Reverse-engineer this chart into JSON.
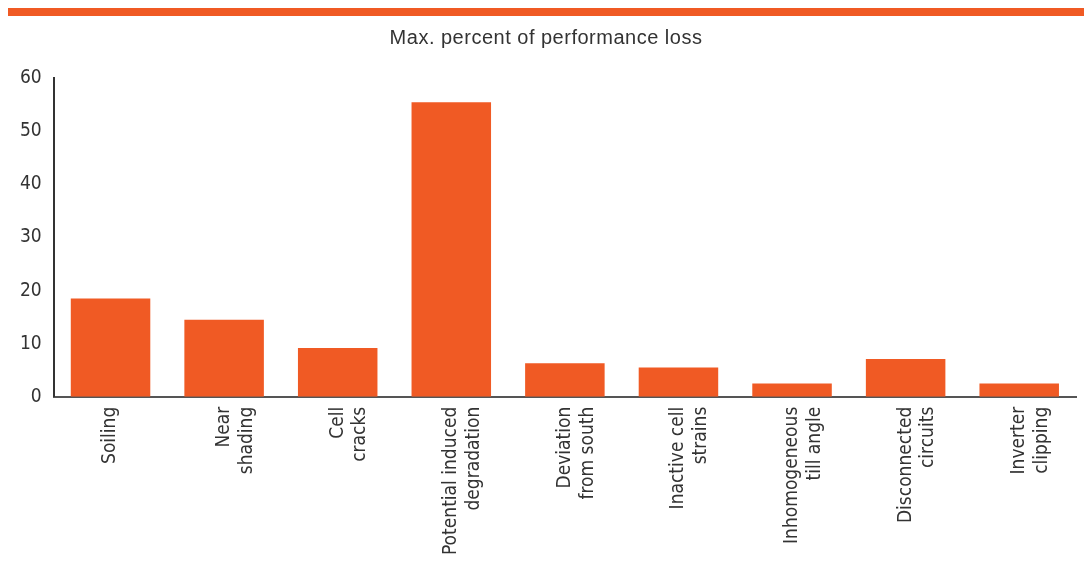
{
  "chart_data": {
    "type": "bar",
    "title": "Max. percent of performance loss",
    "categories": [
      "Soiling",
      "Near\nshading",
      "Cell\ncracks",
      "Potential induced\ndegradation",
      "Deviation\nfrom south",
      "Inactive cell\nstrains",
      "Inhomogeneous\ntill angle",
      "Disconnected\ncircuits",
      "Inverter\nclipping"
    ],
    "values": [
      18.5,
      14.5,
      9.2,
      55.5,
      6.3,
      5.5,
      2.5,
      7.1,
      2.5
    ],
    "color": "#f05a24",
    "ylim": [
      0,
      60
    ],
    "yticks": [
      0,
      10,
      20,
      30,
      40,
      50,
      60
    ],
    "grid": false,
    "legend": false
  }
}
